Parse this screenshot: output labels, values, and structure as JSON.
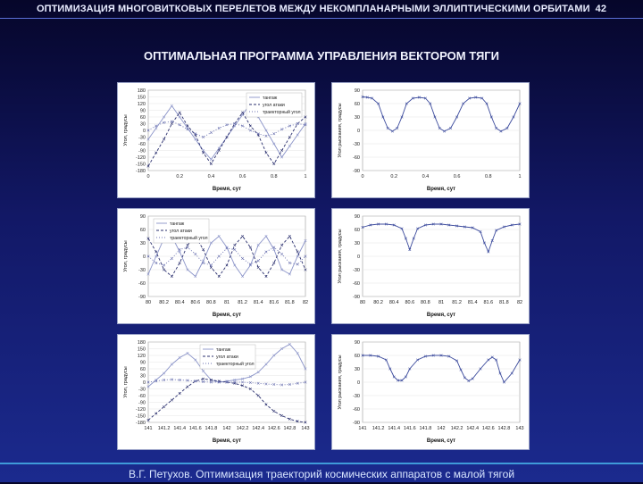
{
  "header": {
    "title": "ОПТИМИЗАЦИЯ МНОГОВИТКОВЫХ ПЕРЕЛЕТОВ МЕЖДУ НЕКОМПЛАНАРНЫМИ ЭЛЛИПТИЧЕСКИМИ ОРБИТАМИ",
    "page": "42"
  },
  "subtitle": "ОПТИМАЛЬНАЯ ПРОГРАММА УПРАВЛЕНИЯ ВЕКТОРОМ ТЯГИ",
  "footer": "В.Г. Петухов. Оптимизация траекторий космических аппаратов с малой тягой",
  "colors": {
    "tangage": "#8a93c8",
    "attack": "#2a2f6e",
    "trajectory": "#6b72b0",
    "yaw": "#3b4a9c"
  },
  "chart_data": [
    {
      "type": "line",
      "xlabel": "Время, сут",
      "ylabel": "Угол, градусы",
      "xlim": [
        0,
        1
      ],
      "ylim": [
        -180,
        180
      ],
      "xticks": [
        "0",
        "0.2",
        "0.4",
        "0.6",
        "0.8",
        "1"
      ],
      "yticks": [
        "180",
        "150",
        "120",
        "90",
        "60",
        "30",
        "0",
        "-30",
        "-60",
        "-90",
        "-120",
        "-150",
        "-180"
      ],
      "legend_position": "top-right",
      "series": [
        {
          "name": "тангаж",
          "x": [
            0,
            0.05,
            0.1,
            0.15,
            0.2,
            0.25,
            0.3,
            0.35,
            0.4,
            0.45,
            0.5,
            0.55,
            0.6,
            0.65,
            0.7,
            0.75,
            0.8,
            0.85,
            0.9,
            0.95,
            1
          ],
          "y": [
            -40,
            10,
            60,
            110,
            60,
            10,
            -40,
            -90,
            -130,
            -80,
            -30,
            20,
            70,
            120,
            60,
            0,
            -60,
            -120,
            -70,
            -20,
            30
          ]
        },
        {
          "name": "угол атаки",
          "x": [
            0,
            0.05,
            0.1,
            0.15,
            0.2,
            0.25,
            0.3,
            0.35,
            0.4,
            0.45,
            0.5,
            0.55,
            0.6,
            0.65,
            0.7,
            0.75,
            0.8,
            0.85,
            0.9,
            0.95,
            1
          ],
          "y": [
            -160,
            -100,
            -40,
            30,
            80,
            20,
            -20,
            -100,
            -150,
            -90,
            -30,
            30,
            80,
            20,
            -20,
            -100,
            -150,
            -90,
            -30,
            30,
            60
          ]
        },
        {
          "name": "траекторный угол",
          "x": [
            0,
            0.05,
            0.1,
            0.15,
            0.2,
            0.25,
            0.3,
            0.35,
            0.4,
            0.45,
            0.5,
            0.55,
            0.6,
            0.65,
            0.7,
            0.75,
            0.8,
            0.85,
            0.9,
            0.95,
            1
          ],
          "y": [
            0,
            20,
            35,
            40,
            25,
            5,
            -15,
            -30,
            -10,
            10,
            25,
            30,
            20,
            0,
            -15,
            -25,
            -15,
            5,
            20,
            30,
            25
          ]
        }
      ]
    },
    {
      "type": "line",
      "xlabel": "Время, сут",
      "ylabel": "Угол рыскания, градусы",
      "xlim": [
        0,
        1
      ],
      "ylim": [
        -90,
        90
      ],
      "xticks": [
        "0",
        "0.2",
        "0.4",
        "0.6",
        "0.8",
        "1"
      ],
      "yticks": [
        "90",
        "60",
        "30",
        "0",
        "-30",
        "-60",
        "-90"
      ],
      "series": [
        {
          "x": [
            0,
            0.03,
            0.06,
            0.1,
            0.13,
            0.16,
            0.19,
            0.22,
            0.25,
            0.28,
            0.32,
            0.36,
            0.4,
            0.43,
            0.46,
            0.49,
            0.52,
            0.56,
            0.6,
            0.64,
            0.68,
            0.72,
            0.76,
            0.79,
            0.82,
            0.85,
            0.88,
            0.92,
            0.96,
            1
          ],
          "y": [
            75,
            74,
            72,
            60,
            30,
            5,
            -2,
            5,
            30,
            60,
            72,
            74,
            72,
            60,
            30,
            5,
            -2,
            5,
            30,
            60,
            72,
            74,
            72,
            60,
            30,
            5,
            -2,
            5,
            30,
            60
          ]
        }
      ]
    },
    {
      "type": "line",
      "xlabel": "Время, сут",
      "ylabel": "Угол, градусы",
      "xlim": [
        80,
        82
      ],
      "ylim": [
        -90,
        90
      ],
      "xticks": [
        "80",
        "80.2",
        "80.4",
        "80.6",
        "80.8",
        "81",
        "81.2",
        "81.4",
        "81.6",
        "81.8",
        "82"
      ],
      "yticks": [
        "90",
        "60",
        "30",
        "0",
        "-30",
        "-60",
        "-90"
      ],
      "legend_position": "top-left",
      "series": [
        {
          "name": "тангаж",
          "x": [
            80,
            80.1,
            80.2,
            80.3,
            80.4,
            80.5,
            80.6,
            80.7,
            80.8,
            80.9,
            81,
            81.1,
            81.2,
            81.3,
            81.4,
            81.5,
            81.6,
            81.7,
            81.8,
            81.9,
            82
          ],
          "y": [
            -40,
            0,
            40,
            45,
            10,
            -30,
            -45,
            -10,
            30,
            45,
            20,
            -20,
            -45,
            -20,
            25,
            45,
            15,
            -30,
            -40,
            0,
            35
          ]
        },
        {
          "name": "угол атаки",
          "x": [
            80,
            80.1,
            80.2,
            80.3,
            80.4,
            80.5,
            80.6,
            80.7,
            80.8,
            80.9,
            81,
            81.1,
            81.2,
            81.3,
            81.4,
            81.5,
            81.6,
            81.7,
            81.8,
            81.9,
            82
          ],
          "y": [
            40,
            10,
            -30,
            -45,
            -15,
            25,
            45,
            15,
            -25,
            -45,
            -20,
            25,
            45,
            20,
            -25,
            -45,
            -15,
            25,
            45,
            10,
            -30
          ]
        },
        {
          "name": "траекторный угол",
          "x": [
            80,
            80.1,
            80.2,
            80.3,
            80.4,
            80.5,
            80.6,
            80.7,
            80.8,
            80.9,
            81,
            81.1,
            81.2,
            81.3,
            81.4,
            81.5,
            81.6,
            81.7,
            81.8,
            81.9,
            82
          ],
          "y": [
            0,
            -15,
            -20,
            -5,
            15,
            20,
            5,
            -15,
            -20,
            0,
            18,
            15,
            -5,
            -18,
            -10,
            10,
            20,
            5,
            -15,
            -18,
            0
          ]
        }
      ]
    },
    {
      "type": "line",
      "xlabel": "Время, сут",
      "ylabel": "Угол рыскания, градусы",
      "xlim": [
        80,
        82
      ],
      "ylim": [
        -90,
        90
      ],
      "xticks": [
        "80",
        "80.2",
        "80.4",
        "80.6",
        "80.8",
        "81",
        "81.2",
        "81.4",
        "81.6",
        "81.8",
        "82"
      ],
      "yticks": [
        "90",
        "60",
        "30",
        "0",
        "-30",
        "-60",
        "-90"
      ],
      "series": [
        {
          "x": [
            80,
            80.1,
            80.2,
            80.3,
            80.4,
            80.5,
            80.55,
            80.6,
            80.65,
            80.7,
            80.8,
            80.9,
            81,
            81.1,
            81.2,
            81.3,
            81.4,
            81.5,
            81.55,
            81.6,
            81.65,
            81.7,
            81.8,
            81.9,
            82
          ],
          "y": [
            65,
            70,
            72,
            72,
            70,
            62,
            40,
            15,
            40,
            62,
            70,
            72,
            72,
            70,
            68,
            66,
            64,
            55,
            30,
            10,
            35,
            58,
            66,
            70,
            72
          ]
        }
      ]
    },
    {
      "type": "line",
      "xlabel": "Время, сут",
      "ylabel": "Угол, градусы",
      "xlim": [
        141,
        143
      ],
      "ylim": [
        -180,
        180
      ],
      "xticks": [
        "141",
        "141.2",
        "141.4",
        "141.6",
        "141.8",
        "142",
        "142.2",
        "142.4",
        "142.6",
        "142.8",
        "143"
      ],
      "yticks": [
        "180",
        "150",
        "120",
        "90",
        "60",
        "30",
        "0",
        "-30",
        "-60",
        "-90",
        "-120",
        "-150",
        "-180"
      ],
      "legend_position": "top-center",
      "series": [
        {
          "name": "тангаж",
          "x": [
            141,
            141.1,
            141.2,
            141.3,
            141.4,
            141.5,
            141.6,
            141.7,
            141.8,
            141.9,
            142,
            142.1,
            142.2,
            142.3,
            142.4,
            142.5,
            142.6,
            142.7,
            142.8,
            142.9,
            143
          ],
          "y": [
            -20,
            10,
            40,
            80,
            110,
            130,
            100,
            50,
            10,
            0,
            5,
            10,
            15,
            25,
            45,
            80,
            120,
            150,
            170,
            130,
            60
          ]
        },
        {
          "name": "угол атаки",
          "x": [
            141,
            141.1,
            141.2,
            141.3,
            141.4,
            141.5,
            141.6,
            141.7,
            141.8,
            141.9,
            142,
            142.1,
            142.2,
            142.3,
            142.4,
            142.5,
            142.6,
            142.7,
            142.8,
            142.9,
            143
          ],
          "y": [
            -170,
            -140,
            -110,
            -80,
            -50,
            -20,
            5,
            15,
            10,
            5,
            0,
            -5,
            -15,
            -30,
            -60,
            -100,
            -130,
            -150,
            -165,
            -175,
            -180
          ]
        },
        {
          "name": "траекторный угол",
          "x": [
            141,
            141.1,
            141.2,
            141.3,
            141.4,
            141.5,
            141.6,
            141.7,
            141.8,
            141.9,
            142,
            142.1,
            142.2,
            142.3,
            142.4,
            142.5,
            142.6,
            142.7,
            142.8,
            142.9,
            143
          ],
          "y": [
            0,
            5,
            10,
            12,
            10,
            8,
            5,
            2,
            0,
            0,
            0,
            0,
            0,
            -2,
            -5,
            -8,
            -10,
            -12,
            -10,
            -5,
            0
          ]
        }
      ]
    },
    {
      "type": "line",
      "xlabel": "Время, сут",
      "ylabel": "Угол рыскания, градусы",
      "xlim": [
        141,
        143
      ],
      "ylim": [
        -90,
        90
      ],
      "xticks": [
        "141",
        "141.2",
        "141.4",
        "141.6",
        "141.8",
        "142",
        "142.2",
        "142.4",
        "142.6",
        "142.8",
        "143"
      ],
      "yticks": [
        "90",
        "60",
        "30",
        "0",
        "-30",
        "-60",
        "-90"
      ],
      "series": [
        {
          "x": [
            141,
            141.1,
            141.2,
            141.3,
            141.35,
            141.4,
            141.45,
            141.5,
            141.55,
            141.6,
            141.7,
            141.8,
            141.9,
            142,
            142.1,
            142.2,
            142.25,
            142.3,
            142.35,
            142.4,
            142.5,
            142.6,
            142.65,
            142.7,
            142.75,
            142.8,
            142.9,
            143
          ],
          "y": [
            60,
            60,
            58,
            50,
            30,
            12,
            4,
            4,
            12,
            30,
            50,
            58,
            60,
            60,
            58,
            48,
            28,
            10,
            3,
            8,
            30,
            50,
            56,
            50,
            20,
            0,
            20,
            50
          ]
        }
      ]
    }
  ]
}
